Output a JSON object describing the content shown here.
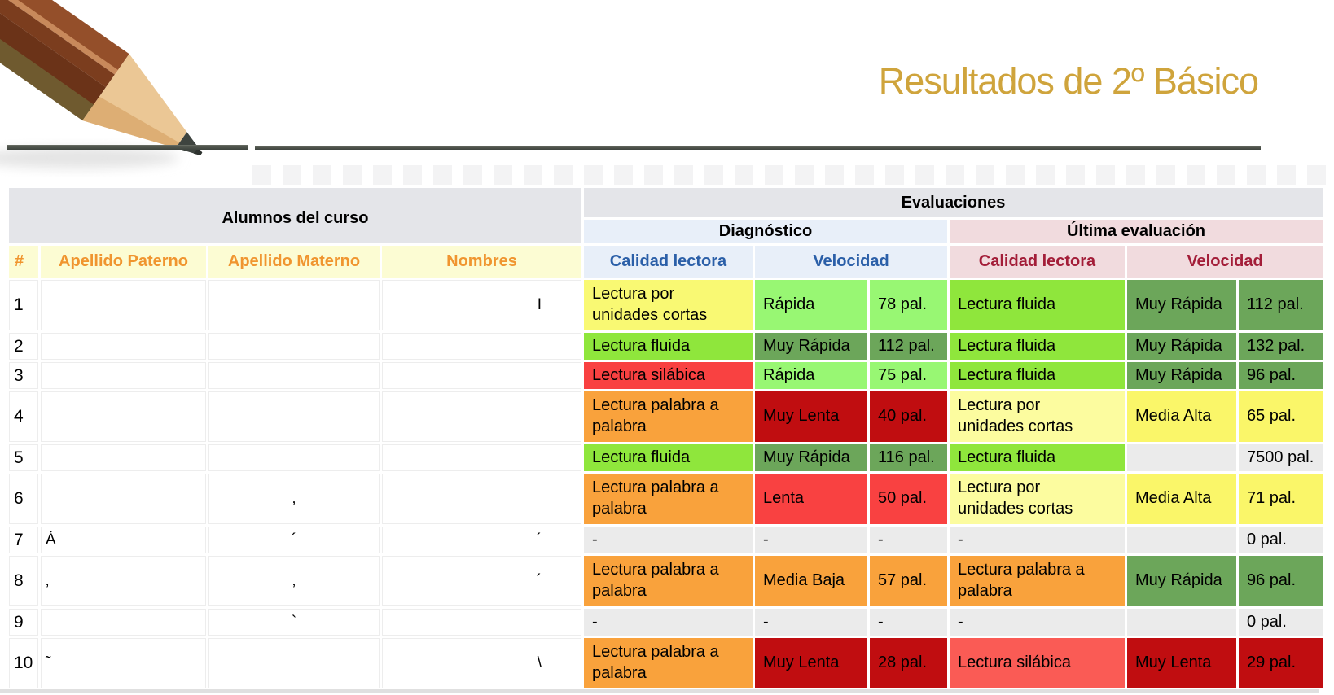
{
  "title": "Resultados de 2º Básico",
  "headers": {
    "students_group": "Alumnos del curso",
    "evaluations_group": "Evaluaciones",
    "diagnostic": "Diagnóstico",
    "last_evaluation": "Última evaluación",
    "num": "#",
    "apellido_paterno": "Apellido Paterno",
    "apellido_materno": "Apellido Materno",
    "nombres": "Nombres",
    "calidad_diag": "Calidad lectora",
    "velocidad_diag": "Velocidad",
    "calidad_last": "Calidad lectora",
    "velocidad_last": "Velocidad"
  },
  "rows": [
    {
      "num": "1",
      "paterno": "",
      "materno": "",
      "nombres": "I",
      "size": "tall",
      "cells": [
        [
          "Lectura por\nunidades cortas",
          "yellow"
        ],
        [
          "Rápida",
          "lightgreen"
        ],
        [
          "78 pal.",
          "lightgreen"
        ],
        [
          "Lectura fluida",
          "green"
        ],
        [
          "Muy Rápida",
          "darkgreen"
        ],
        [
          "112 pal.",
          "darkgreen"
        ]
      ]
    },
    {
      "num": "2",
      "paterno": "",
      "materno": "",
      "nombres": "",
      "size": "short",
      "cells": [
        [
          "Lectura fluida",
          "green"
        ],
        [
          "Muy Rápida",
          "darkgreen"
        ],
        [
          "112 pal.",
          "darkgreen"
        ],
        [
          "Lectura fluida",
          "green"
        ],
        [
          "Muy Rápida",
          "darkgreen"
        ],
        [
          "132 pal.",
          "darkgreen"
        ]
      ]
    },
    {
      "num": "3",
      "paterno": "",
      "materno": "",
      "nombres": "",
      "size": "short",
      "cells": [
        [
          "Lectura silábica",
          "red"
        ],
        [
          "Rápida",
          "lightgreen"
        ],
        [
          "75 pal.",
          "lightgreen"
        ],
        [
          "Lectura fluida",
          "green"
        ],
        [
          "Muy Rápida",
          "darkgreen"
        ],
        [
          "96 pal.",
          "darkgreen"
        ]
      ]
    },
    {
      "num": "4",
      "paterno": "",
      "materno": "",
      "nombres": "",
      "size": "tall",
      "cells": [
        [
          "Lectura palabra a\npalabra",
          "orange"
        ],
        [
          "Muy Lenta",
          "darkred"
        ],
        [
          "40 pal.",
          "darkred"
        ],
        [
          "Lectura por\nunidades cortas",
          "paleyellow"
        ],
        [
          "Media Alta",
          "mediumyellow"
        ],
        [
          "65 pal.",
          "mediumyellow"
        ]
      ]
    },
    {
      "num": "5",
      "paterno": "",
      "materno": "",
      "nombres": "",
      "size": "short",
      "cells": [
        [
          "Lectura fluida",
          "green"
        ],
        [
          "Muy Rápida",
          "darkgreen"
        ],
        [
          "116 pal.",
          "darkgreen"
        ],
        [
          "Lectura fluida",
          "green"
        ],
        [
          "",
          "gray"
        ],
        [
          "7500 pal.",
          "gray"
        ]
      ]
    },
    {
      "num": "6",
      "paterno": "",
      "materno": "‚",
      "nombres": "",
      "size": "tall",
      "cells": [
        [
          "Lectura palabra a\npalabra",
          "orange"
        ],
        [
          "Lenta",
          "red"
        ],
        [
          "50 pal.",
          "red"
        ],
        [
          "Lectura por\nunidades cortas",
          "paleyellow"
        ],
        [
          "Media Alta",
          "mediumyellow"
        ],
        [
          "71 pal.",
          "mediumyellow"
        ]
      ]
    },
    {
      "num": "7",
      "paterno": "Á",
      "materno": "´",
      "nombres": "´",
      "size": "short",
      "cells": [
        [
          "-",
          "gray"
        ],
        [
          "-",
          "gray"
        ],
        [
          "-",
          "gray"
        ],
        [
          "-",
          "gray"
        ],
        [
          "",
          "gray"
        ],
        [
          "0 pal.",
          "gray"
        ]
      ]
    },
    {
      "num": "8",
      "paterno": "‚",
      "materno": "‚",
      "nombres": "´",
      "size": "tall",
      "cells": [
        [
          "Lectura palabra a\npalabra",
          "orange"
        ],
        [
          "Media Baja",
          "orange"
        ],
        [
          "57 pal.",
          "orange"
        ],
        [
          "Lectura palabra a\npalabra",
          "orange"
        ],
        [
          "Muy Rápida",
          "darkgreen"
        ],
        [
          "96 pal.",
          "darkgreen"
        ]
      ]
    },
    {
      "num": "9",
      "paterno": "",
      "materno": "`",
      "nombres": "",
      "size": "short",
      "cells": [
        [
          "-",
          "gray"
        ],
        [
          "-",
          "gray"
        ],
        [
          "-",
          "gray"
        ],
        [
          "-",
          "gray"
        ],
        [
          "",
          "gray"
        ],
        [
          "0 pal.",
          "gray"
        ]
      ]
    },
    {
      "num": "10",
      "paterno": "˜",
      "materno": "",
      "nombres": "\\",
      "size": "tall",
      "cells": [
        [
          "Lectura palabra a\npalabra",
          "orange"
        ],
        [
          "Muy Lenta",
          "darkred"
        ],
        [
          "28 pal.",
          "darkred"
        ],
        [
          "Lectura silábica",
          "salmon"
        ],
        [
          "Muy Lenta",
          "darkred"
        ],
        [
          "29 pal.",
          "darkred"
        ]
      ]
    }
  ],
  "colors": {
    "yellow": "#F9F973",
    "paleyellow": "#FCFC9F",
    "mediumyellow": "#FAF669",
    "lightgreen": "#98F773",
    "green": "#8FE63C",
    "darkgreen": "#6CA65A",
    "orange": "#F9A23C",
    "red": "#F94141",
    "salmon": "#FA5B55",
    "darkred": "#C00D10",
    "gray": "#EBEBEB",
    "header_band": "#E4E5E9",
    "header_yellow": "#FCFCD3",
    "header_orange_text": "#F0952F",
    "diag_bg": "#E8EFF9",
    "diag_text": "#2B5FA8",
    "last_bg": "#F1DBDE",
    "last_text": "#A31D38",
    "title_text": "#CFA43C",
    "line": "#51564E"
  }
}
